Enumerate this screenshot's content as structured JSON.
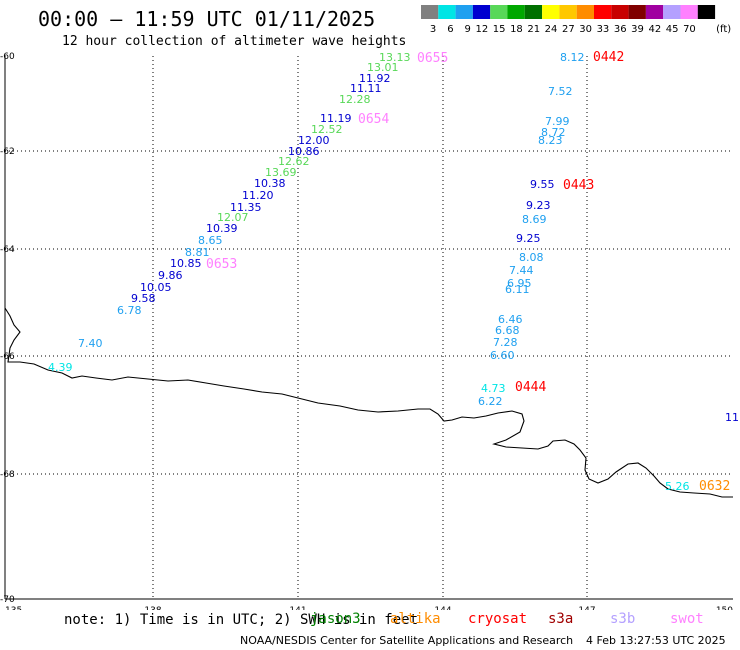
{
  "header": {
    "title": "00:00 – 11:59 UTC 01/11/2025",
    "subtitle": "12 hour collection of altimeter wave heights"
  },
  "colorbar": {
    "unit": "(ft)",
    "segments": [
      {
        "label": "3",
        "color": "#808080"
      },
      {
        "label": "6",
        "color": "#00e5e5"
      },
      {
        "label": "9",
        "color": "#1fa0f0"
      },
      {
        "label": "12",
        "color": "#0000d0"
      },
      {
        "label": "15",
        "color": "#58d858"
      },
      {
        "label": "18",
        "color": "#00a800"
      },
      {
        "label": "21",
        "color": "#007000"
      },
      {
        "label": "24",
        "color": "#ffff00"
      },
      {
        "label": "27",
        "color": "#ffc800"
      },
      {
        "label": "30",
        "color": "#ff8c00"
      },
      {
        "label": "33",
        "color": "#ff0000"
      },
      {
        "label": "36",
        "color": "#c80000"
      },
      {
        "label": "39",
        "color": "#800000"
      },
      {
        "label": "42",
        "color": "#a000a0"
      },
      {
        "label": "45",
        "color": "#b4a0ff"
      },
      {
        "label": "70",
        "color": "#ff80ff"
      },
      {
        "label": "",
        "color": "#000000"
      }
    ]
  },
  "axes": {
    "lon_ticks": [
      "135",
      "138",
      "141",
      "144",
      "147",
      "150"
    ],
    "lat_ticks": [
      "-60",
      "-62",
      "-64",
      "-66",
      "-68",
      "-70"
    ]
  },
  "map_data": {
    "tracks": [
      {
        "satellite": "swot",
        "pass": "0655",
        "pass_color": "#ff80ff",
        "points": [
          {
            "v": "13.13",
            "color": "#58d858"
          },
          {
            "v": "13.01",
            "color": "#58d858"
          },
          {
            "v": "11.92",
            "color": "#0000d0"
          },
          {
            "v": "11.11",
            "color": "#0000d0"
          },
          {
            "v": "12.28",
            "color": "#58d858"
          }
        ]
      },
      {
        "satellite": "swot",
        "pass": "0654",
        "pass_color": "#ff80ff",
        "points": [
          {
            "v": "11.19",
            "color": "#0000d0"
          },
          {
            "v": "12.52",
            "color": "#58d858"
          },
          {
            "v": "12.00",
            "color": "#0000d0"
          },
          {
            "v": "10.86",
            "color": "#0000d0"
          },
          {
            "v": "12.62",
            "color": "#58d858"
          },
          {
            "v": "13.69",
            "color": "#58d858"
          },
          {
            "v": "10.38",
            "color": "#0000d0"
          },
          {
            "v": "11.20",
            "color": "#0000d0"
          },
          {
            "v": "11.35",
            "color": "#0000d0"
          },
          {
            "v": "12.07",
            "color": "#58d858"
          }
        ]
      },
      {
        "satellite": "swot",
        "pass": "0653",
        "pass_color": "#ff80ff",
        "points": [
          {
            "v": "10.39",
            "color": "#0000d0"
          },
          {
            "v": "8.65",
            "color": "#1fa0f0"
          },
          {
            "v": "8.81",
            "color": "#1fa0f0"
          },
          {
            "v": "10.85",
            "color": "#0000d0"
          },
          {
            "v": "9.86",
            "color": "#0000d0"
          },
          {
            "v": "10.05",
            "color": "#0000d0"
          },
          {
            "v": "9.58",
            "color": "#0000d0"
          },
          {
            "v": "6.78",
            "color": "#1fa0f0"
          },
          {
            "v": "7.40",
            "color": "#1fa0f0"
          },
          {
            "v": "4.39",
            "color": "#00e5e5"
          }
        ]
      },
      {
        "satellite": "cryosat",
        "pass": "0442",
        "pass_color": "#ff0000",
        "points": [
          {
            "v": "8.12",
            "color": "#1fa0f0"
          },
          {
            "v": "7.52",
            "color": "#1fa0f0"
          },
          {
            "v": "7.99",
            "color": "#1fa0f0"
          }
        ]
      },
      {
        "satellite": "cryosat",
        "pass": "0443",
        "pass_color": "#ff0000",
        "points": [
          {
            "v": "8.72",
            "color": "#1fa0f0"
          },
          {
            "v": "8.23",
            "color": "#1fa0f0"
          },
          {
            "v": "9.55",
            "color": "#0000d0"
          },
          {
            "v": "9.23",
            "color": "#0000d0"
          },
          {
            "v": "8.69",
            "color": "#1fa0f0"
          },
          {
            "v": "9.25",
            "color": "#0000d0"
          },
          {
            "v": "8.08",
            "color": "#1fa0f0"
          },
          {
            "v": "7.44",
            "color": "#1fa0f0"
          },
          {
            "v": "6.95",
            "color": "#1fa0f0"
          },
          {
            "v": "6.11",
            "color": "#1fa0f0"
          },
          {
            "v": "6.46",
            "color": "#1fa0f0"
          },
          {
            "v": "6.68",
            "color": "#1fa0f0"
          },
          {
            "v": "7.28",
            "color": "#1fa0f0"
          },
          {
            "v": "6.60",
            "color": "#1fa0f0"
          }
        ]
      },
      {
        "satellite": "cryosat",
        "pass": "0444",
        "pass_color": "#ff0000",
        "points": [
          {
            "v": "4.73",
            "color": "#00e5e5"
          },
          {
            "v": "6.22",
            "color": "#1fa0f0"
          }
        ]
      },
      {
        "satellite": "altika",
        "pass": "0632",
        "pass_color": "#ff8c00",
        "points": [
          {
            "v": "5.26",
            "color": "#00e5e5"
          }
        ]
      },
      {
        "satellite": "",
        "pass": "",
        "pass_color": "#0000d0",
        "points": [
          {
            "v": "11",
            "color": "#0000d0"
          }
        ]
      }
    ]
  },
  "footer": {
    "note": "note: 1) Time is in UTC; 2) SWH is in feet",
    "legend": [
      {
        "name": "jason3",
        "color": "#008000"
      },
      {
        "name": "altika",
        "color": "#ff8c00"
      },
      {
        "name": "cryosat",
        "color": "#ff0000"
      },
      {
        "name": "s3a",
        "color": "#a00000"
      },
      {
        "name": "s3b",
        "color": "#b4a0ff"
      },
      {
        "name": "swot",
        "color": "#ff80ff"
      }
    ],
    "credit": "NOAA/NESDIS Center for Satellite Applications and Research",
    "timestamp": "4 Feb 13:27:53 UTC 2025"
  }
}
